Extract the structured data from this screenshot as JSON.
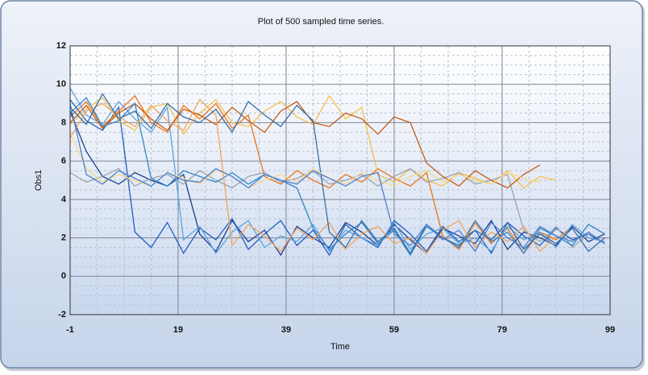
{
  "chart_data": {
    "type": "line",
    "title": "Plot of 500 sampled time series.",
    "x_label": "Time",
    "y_label": "Obs1",
    "xlim": [
      -1,
      99
    ],
    "ylim": [
      -2,
      12
    ],
    "xticks": [
      -1,
      19,
      39,
      59,
      79,
      99
    ],
    "yticks": [
      -2,
      0,
      2,
      4,
      6,
      8,
      10,
      12
    ],
    "grid": true,
    "x": [
      -1,
      2,
      5,
      8,
      11,
      14,
      17,
      20,
      23,
      26,
      29,
      32,
      35,
      38,
      41,
      44,
      47,
      50,
      53,
      56,
      59,
      62,
      65,
      68,
      71,
      74,
      77,
      80,
      83,
      86,
      89,
      92,
      95,
      98
    ],
    "series": [
      {
        "color": "#1f5fbf",
        "values": [
          9.2,
          8.1,
          7.6,
          8.8,
          2.3,
          1.5,
          2.8,
          1.2,
          2.5,
          1.9,
          3.0,
          1.4,
          2.2,
          2.9,
          1.6,
          2.4,
          1.1,
          2.7,
          2.0,
          1.5,
          2.9,
          2.2,
          1.3,
          2.6,
          1.8,
          2.4,
          1.2,
          2.8,
          2.1,
          1.6,
          2.5,
          1.9,
          2.2,
          1.7
        ]
      },
      {
        "color": "#e8741c",
        "values": [
          8.3,
          9.1,
          7.8,
          8.6,
          9.4,
          8.0,
          7.5,
          8.9,
          8.2,
          9.0,
          7.7,
          8.4,
          5.2,
          4.8,
          5.5,
          5.0,
          4.6,
          5.3,
          4.9,
          5.6,
          5.1,
          4.7,
          5.4,
          2.1,
          1.4,
          2.8,
          1.7,
          2.5,
          1.2,
          2.3,
          1.9,
          2.6,
          null,
          null
        ]
      },
      {
        "color": "#f5c04a",
        "values": [
          7.9,
          8.7,
          9.3,
          8.1,
          7.6,
          8.8,
          9.0,
          7.4,
          8.5,
          9.2,
          8.0,
          7.8,
          8.6,
          9.1,
          8.3,
          7.9,
          9.4,
          8.2,
          8.8,
          5.3,
          4.9,
          5.6,
          5.0,
          4.7,
          5.4,
          5.1,
          4.8,
          5.5,
          4.6,
          5.2,
          5.0,
          null,
          null,
          null
        ]
      },
      {
        "color": "#1a3f8f",
        "values": [
          8.6,
          6.5,
          5.2,
          4.8,
          5.4,
          5.0,
          4.7,
          5.3,
          2.2,
          1.3,
          2.9,
          1.8,
          2.4,
          1.1,
          2.6,
          2.0,
          1.5,
          2.8,
          2.3,
          1.6,
          2.7,
          1.9,
          1.2,
          2.5,
          2.1,
          1.7,
          2.9,
          1.4,
          2.3,
          2.0,
          1.6,
          2.6,
          1.8,
          2.2
        ]
      },
      {
        "color": "#5ba3e0",
        "values": [
          9.8,
          8.4,
          7.9,
          9.1,
          8.2,
          7.5,
          8.8,
          1.9,
          2.6,
          1.2,
          2.3,
          2.9,
          1.5,
          2.1,
          1.8,
          2.7,
          1.3,
          2.4,
          2.0,
          1.6,
          2.8,
          1.4,
          2.2,
          2.5,
          1.7,
          2.0,
          1.3,
          2.6,
          1.9,
          2.3,
          1.5,
          2.7,
          2.0,
          1.8
        ]
      },
      {
        "color": "#9aa3ad",
        "values": [
          5.4,
          4.9,
          5.2,
          5.6,
          4.7,
          5.1,
          5.3,
          4.8,
          5.5,
          5.0,
          4.6,
          5.2,
          5.4,
          4.9,
          5.1,
          5.5,
          4.8,
          5.0,
          5.3,
          4.7,
          5.2,
          5.6,
          4.9,
          5.1,
          5.4,
          4.8,
          5.0,
          5.3,
          2.4,
          1.8,
          2.6,
          1.5,
          2.2,
          null
        ]
      },
      {
        "color": "#c85a12",
        "values": [
          8.0,
          8.9,
          7.7,
          8.5,
          9.0,
          8.2,
          7.6,
          8.7,
          8.4,
          7.9,
          8.8,
          8.1,
          7.5,
          8.6,
          9.1,
          8.0,
          7.8,
          8.5,
          8.2,
          7.4,
          8.3,
          8.0,
          5.9,
          5.2,
          4.7,
          5.5,
          5.0,
          4.6,
          5.3,
          5.8,
          null,
          null,
          null,
          null
        ]
      },
      {
        "color": "#2f86c8",
        "values": [
          8.5,
          9.3,
          7.8,
          8.1,
          9.0,
          5.1,
          4.7,
          5.5,
          5.2,
          4.9,
          5.4,
          4.8,
          5.3,
          5.0,
          4.6,
          2.5,
          1.4,
          2.2,
          2.8,
          1.7,
          2.4,
          1.1,
          2.6,
          2.0,
          1.5,
          2.9,
          1.8,
          2.3,
          1.2,
          2.5,
          2.1,
          1.6,
          2.7,
          2.2
        ]
      },
      {
        "color": "#f2a45a",
        "values": [
          7.2,
          8.6,
          9.0,
          8.3,
          7.8,
          8.9,
          8.1,
          7.6,
          9.2,
          8.4,
          1.6,
          2.7,
          2.1,
          1.3,
          2.5,
          1.9,
          2.8,
          1.4,
          2.2,
          2.6,
          1.7,
          2.0,
          1.2,
          2.4,
          2.9,
          1.5,
          2.3,
          1.8,
          2.6,
          1.3,
          2.1,
          null,
          null,
          null
        ]
      },
      {
        "color": "#3a6ea5",
        "values": [
          8.8,
          7.9,
          9.5,
          8.2,
          8.6,
          7.7,
          9.0,
          8.3,
          8.0,
          8.7,
          7.5,
          9.1,
          8.4,
          7.8,
          8.9,
          8.1,
          2.3,
          1.5,
          2.9,
          1.8,
          2.5,
          1.2,
          2.7,
          2.0,
          1.6,
          2.4,
          1.9,
          2.8,
          1.4,
          2.2,
          1.7,
          2.5,
          1.3,
          2.0
        ]
      },
      {
        "color": "#f7d98a",
        "values": [
          7.5,
          5.6,
          4.9,
          5.3,
          5.0,
          4.7,
          5.4,
          5.1,
          4.8,
          5.5,
          5.2,
          4.6,
          5.0,
          5.3,
          4.9,
          5.6,
          5.1,
          4.8,
          5.4,
          5.0,
          4.7,
          5.2,
          5.5,
          4.9,
          5.3,
          5.0,
          4.8,
          5.4,
          5.1,
          4.9,
          null,
          null,
          null,
          null
        ]
      },
      {
        "color": "#4f7fd0",
        "values": [
          9.0,
          5.3,
          4.8,
          5.5,
          5.1,
          4.7,
          5.4,
          5.0,
          4.9,
          5.6,
          5.2,
          4.6,
          5.3,
          5.0,
          4.8,
          5.5,
          5.1,
          4.7,
          5.2,
          5.4,
          2.2,
          1.6,
          2.7,
          1.9,
          2.4,
          1.3,
          2.8,
          2.0,
          1.5,
          2.6,
          2.1,
          1.8,
          2.3,
          1.7
        ]
      }
    ]
  }
}
